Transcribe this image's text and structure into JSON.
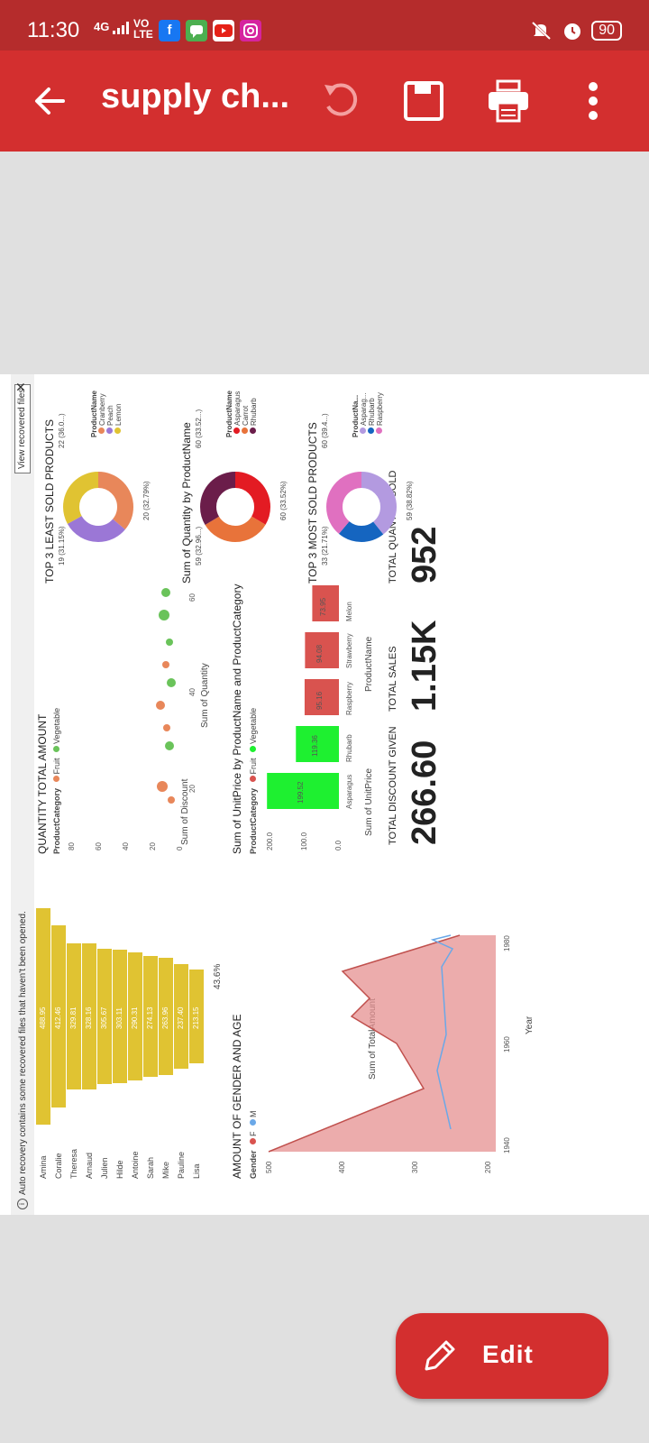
{
  "status_bar": {
    "time": "11:30",
    "network": "4G",
    "lte_top": "VO",
    "lte_bottom": "LTE",
    "battery": "90"
  },
  "app_bar": {
    "title": "supply ch..."
  },
  "notice": {
    "text": "Auto recovery contains some recovered files that haven't been opened.",
    "button": "View recovered files"
  },
  "funnel": {
    "title": "",
    "names": [
      "Amina",
      "Coralie",
      "Theresa",
      "Arnaud",
      "Julien",
      "Hilde",
      "Antoine",
      "Sarah",
      "Mike",
      "Pauline",
      "Lisa"
    ],
    "values_text": [
      "488.95",
      "412.46",
      "329.81",
      "328.16",
      "305.67",
      "303.11",
      "290.31",
      "274.13",
      "263.96",
      "237.40",
      "213.15"
    ],
    "pct": "43.6%"
  },
  "scatter": {
    "title": "QUANTITY TOTAL AMOUNT",
    "legend_title": "ProductCategory",
    "legend_items": [
      "Fruit",
      "Vegetable"
    ],
    "x_label": "Sum of Quantity",
    "y_label": "Sum of Discount",
    "x_ticks": [
      "20",
      "40",
      "60"
    ],
    "y_ticks": [
      "0",
      "20",
      "40",
      "60",
      "80"
    ]
  },
  "area": {
    "title": "AMOUNT OF GENDER AND AGE",
    "legend_title": "Gender",
    "legend_items": [
      "F",
      "M"
    ],
    "x_label": "Year",
    "y_label": "Sum of TotalAmount",
    "x_ticks": [
      "1940",
      "1960",
      "1980"
    ],
    "y_ticks": [
      "200",
      "300",
      "400",
      "500"
    ]
  },
  "bar": {
    "title": "Sum of UnitPrice by ProductName and ProductCategory",
    "legend_title": "ProductCategory",
    "legend_items": [
      "Fruit",
      "Vegetable"
    ],
    "x_label": "ProductName",
    "y_label": "Sum of UnitPrice",
    "y_ticks": [
      "0.0",
      "100.0",
      "200.0"
    ],
    "categories": [
      "Asparagus",
      "Rhubarb",
      "Raspberry",
      "Strawberry",
      "Melon"
    ],
    "values_text": [
      "199.52",
      "119.36",
      "95.16",
      "94.08",
      "73.95"
    ]
  },
  "kpis": {
    "discount_label": "TOTAL DISCOUNT GIVEN",
    "discount_value": "266.60",
    "sales_label": "TOTAL SALES",
    "sales_value": "1.15K",
    "qty_label": "TOTAL QUANTITY SOLD",
    "qty_value": "952"
  },
  "donut1": {
    "title": "TOP 3 LEAST SOLD PRODUCTS",
    "legend_title": "ProductName",
    "legend_items": [
      "Cranberry",
      "Peach",
      "Lemon"
    ],
    "label_a": "22",
    "pct_a": "(36.0...)",
    "label_b": "19",
    "pct_b": "(31.15%)",
    "label_c": "20",
    "pct_c": "(32.79%)"
  },
  "donut2": {
    "title": "Sum of Quantity by ProductName",
    "legend_title": "ProductName",
    "legend_items": [
      "Asparagus",
      "Carrot",
      "Rhubarb"
    ],
    "label_a": "60",
    "pct_a": "(33.52...)",
    "label_b": "59",
    "pct_b": "(32.96...)",
    "label_c": "60",
    "pct_c": "(33.52%)"
  },
  "donut3": {
    "title": "TOP 3 MOST SOLD PRODUCTS",
    "legend_title": "ProductNa...",
    "legend_items": [
      "Asparag...",
      "Rhubarb",
      "Raspberry"
    ],
    "label_a": "60",
    "pct_a": "(39.4...)",
    "label_b": "33",
    "pct_b": "(21.71%)",
    "label_c": "59",
    "pct_c": "(38.82%)"
  },
  "fab": {
    "label": "Edit"
  },
  "colors": {
    "appbar": "#d32f2f",
    "statusbar": "#b52c2c",
    "fruit": "#e8875a",
    "vegetable": "#6ac35a",
    "funnel": "#e0c332"
  }
}
